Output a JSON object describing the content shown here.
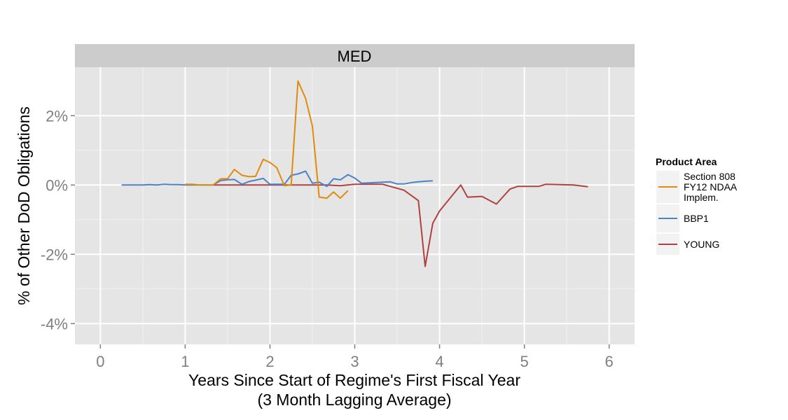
{
  "chart_data": {
    "type": "line",
    "facet_label": "MED",
    "xlabel_line1": "Years Since Start of Regime's First Fiscal Year",
    "xlabel_line2": "(3 Month Lagging Average)",
    "ylabel": "% of Other DoD Obligations",
    "xlim": [
      -0.3,
      6.3
    ],
    "ylim": [
      -4.6,
      3.4
    ],
    "x_ticks": [
      0,
      1,
      2,
      3,
      4,
      5,
      6
    ],
    "x_tick_labels": [
      "0",
      "1",
      "2",
      "3",
      "4",
      "5",
      "6"
    ],
    "y_ticks": [
      -4,
      -2,
      0,
      2
    ],
    "y_tick_labels": [
      "-4%",
      "-2%",
      "0%",
      "2%"
    ],
    "grid": true,
    "legend": {
      "title": "Product Area",
      "position": "right"
    },
    "series": [
      {
        "name": "Section 808 FY12 NDAA Implem.",
        "legend_lines": [
          "Section 808",
          "FY12 NDAA",
          "Implem."
        ],
        "color": "#e08b0a",
        "points": [
          [
            1.0,
            0.02
          ],
          [
            1.08,
            0.02
          ],
          [
            1.17,
            0.0
          ],
          [
            1.25,
            0.0
          ],
          [
            1.33,
            0.0
          ],
          [
            1.42,
            0.18
          ],
          [
            1.5,
            0.18
          ],
          [
            1.58,
            0.45
          ],
          [
            1.67,
            0.28
          ],
          [
            1.75,
            0.24
          ],
          [
            1.83,
            0.25
          ],
          [
            1.92,
            0.74
          ],
          [
            2.0,
            0.65
          ],
          [
            2.08,
            0.5
          ],
          [
            2.17,
            -0.02
          ],
          [
            2.25,
            0.0
          ],
          [
            2.33,
            3.0
          ],
          [
            2.42,
            2.5
          ],
          [
            2.5,
            1.7
          ],
          [
            2.58,
            -0.35
          ],
          [
            2.67,
            -0.38
          ],
          [
            2.75,
            -0.2
          ],
          [
            2.83,
            -0.38
          ],
          [
            2.92,
            -0.16
          ]
        ]
      },
      {
        "name": "BBP1",
        "legend_lines": [
          "BBP1"
        ],
        "color": "#4c82c7",
        "points": [
          [
            0.25,
            0.0
          ],
          [
            0.33,
            0.0
          ],
          [
            0.42,
            0.0
          ],
          [
            0.5,
            0.0
          ],
          [
            0.58,
            0.01
          ],
          [
            0.67,
            0.0
          ],
          [
            0.75,
            0.02
          ],
          [
            0.83,
            0.01
          ],
          [
            0.92,
            0.01
          ],
          [
            1.0,
            0.0
          ],
          [
            1.08,
            0.0
          ],
          [
            1.17,
            0.0
          ],
          [
            1.25,
            0.0
          ],
          [
            1.33,
            0.0
          ],
          [
            1.42,
            0.13
          ],
          [
            1.5,
            0.15
          ],
          [
            1.58,
            0.16
          ],
          [
            1.67,
            0.02
          ],
          [
            1.75,
            0.1
          ],
          [
            1.83,
            0.14
          ],
          [
            1.92,
            0.19
          ],
          [
            2.0,
            0.02
          ],
          [
            2.08,
            0.02
          ],
          [
            2.17,
            0.02
          ],
          [
            2.25,
            0.28
          ],
          [
            2.33,
            0.32
          ],
          [
            2.42,
            0.4
          ],
          [
            2.5,
            0.05
          ],
          [
            2.58,
            0.08
          ],
          [
            2.67,
            -0.04
          ],
          [
            2.75,
            0.18
          ],
          [
            2.83,
            0.15
          ],
          [
            2.92,
            0.3
          ],
          [
            3.0,
            0.2
          ],
          [
            3.08,
            0.05
          ],
          [
            3.17,
            0.06
          ],
          [
            3.25,
            0.07
          ],
          [
            3.33,
            0.08
          ],
          [
            3.42,
            0.09
          ],
          [
            3.5,
            0.03
          ],
          [
            3.58,
            0.03
          ],
          [
            3.67,
            0.07
          ],
          [
            3.75,
            0.09
          ],
          [
            3.83,
            0.11
          ],
          [
            3.92,
            0.12
          ]
        ]
      },
      {
        "name": "YOUNG",
        "legend_lines": [
          "YOUNG"
        ],
        "color": "#b0413e",
        "points": [
          [
            1.33,
            0.0
          ],
          [
            1.67,
            0.0
          ],
          [
            2.0,
            0.0
          ],
          [
            2.33,
            0.0
          ],
          [
            2.67,
            0.0
          ],
          [
            2.83,
            -0.02
          ],
          [
            3.0,
            0.02
          ],
          [
            3.33,
            0.02
          ],
          [
            3.58,
            -0.15
          ],
          [
            3.75,
            -0.45
          ],
          [
            3.83,
            -2.35
          ],
          [
            3.92,
            -1.1
          ],
          [
            4.0,
            -0.75
          ],
          [
            4.25,
            0.0
          ],
          [
            4.33,
            -0.35
          ],
          [
            4.5,
            -0.33
          ],
          [
            4.67,
            -0.55
          ],
          [
            4.83,
            -0.12
          ],
          [
            4.92,
            -0.04
          ],
          [
            5.0,
            -0.04
          ],
          [
            5.17,
            -0.04
          ],
          [
            5.25,
            0.02
          ],
          [
            5.58,
            0.0
          ],
          [
            5.75,
            -0.05
          ]
        ]
      }
    ]
  }
}
